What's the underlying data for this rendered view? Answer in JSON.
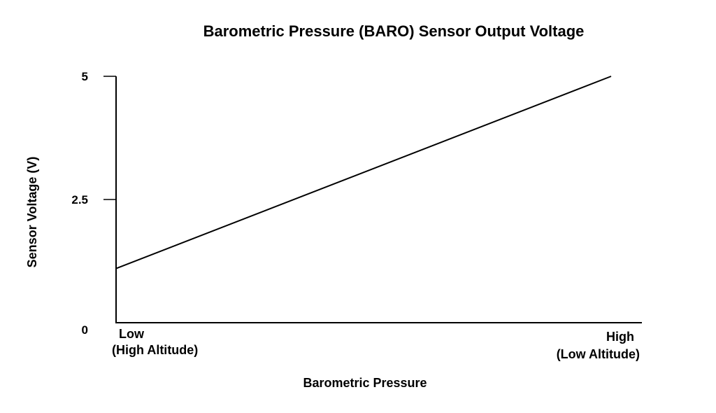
{
  "chart_data": {
    "type": "line",
    "title": "Barometric Pressure (BARO) Sensor Output Voltage",
    "xlabel": "Barometric Pressure",
    "ylabel": "Sensor Voltage (V)",
    "ylim": [
      0,
      5
    ],
    "yticks": [
      {
        "value": 0,
        "label": "0"
      },
      {
        "value": 2.5,
        "label": "2.5"
      },
      {
        "value": 5,
        "label": "5"
      }
    ],
    "xlim": [
      0,
      1
    ],
    "xticks": [
      {
        "value": 0,
        "lines": [
          "Low",
          "(High Altitude)"
        ]
      },
      {
        "value": 1,
        "lines": [
          "High",
          "(Low Altitude)"
        ]
      }
    ],
    "series": [
      {
        "x": [
          0,
          0.942
        ],
        "y": [
          1.1,
          5.0
        ]
      }
    ],
    "grid": false,
    "legend": "none"
  }
}
